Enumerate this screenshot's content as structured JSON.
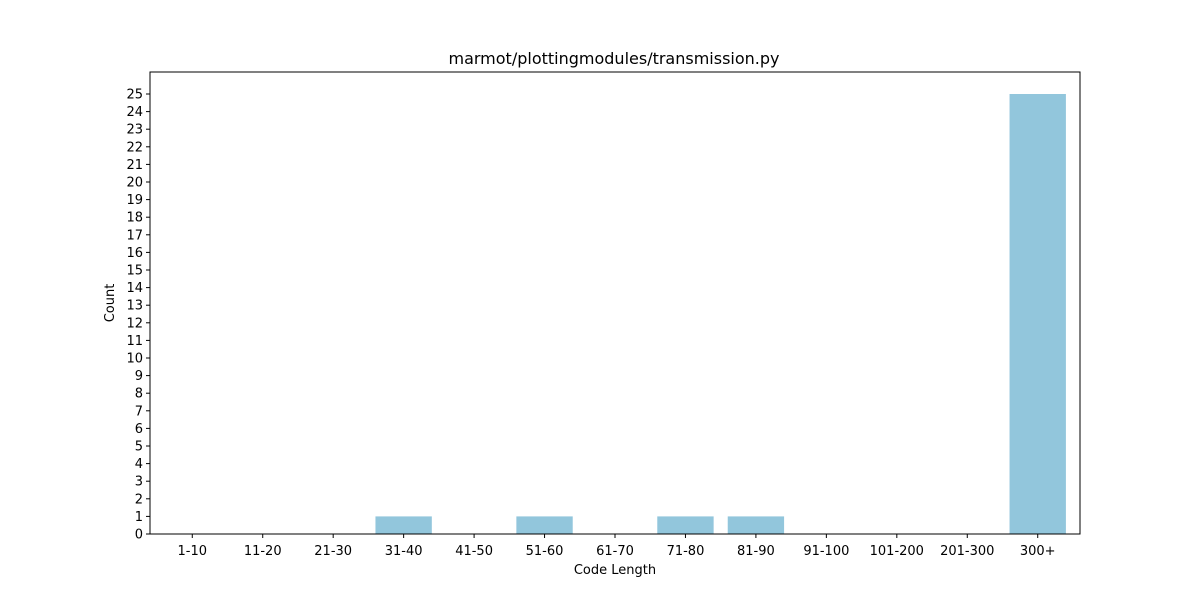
{
  "chart_data": {
    "type": "bar",
    "title": "marmot/plottingmodules/transmission.py",
    "xlabel": "Code Length",
    "ylabel": "Count",
    "categories": [
      "1-10",
      "11-20",
      "21-30",
      "31-40",
      "41-50",
      "51-60",
      "61-70",
      "71-80",
      "81-90",
      "91-100",
      "101-200",
      "201-300",
      "300+"
    ],
    "values": [
      0,
      0,
      0,
      1,
      0,
      1,
      0,
      1,
      1,
      0,
      0,
      0,
      25
    ],
    "ylim": [
      0,
      26.25
    ],
    "yticks": [
      0,
      1,
      2,
      3,
      4,
      5,
      6,
      7,
      8,
      9,
      10,
      11,
      12,
      13,
      14,
      15,
      16,
      17,
      18,
      19,
      20,
      21,
      22,
      23,
      24,
      25
    ],
    "bar_color": "#92c6dc",
    "grid": false
  }
}
